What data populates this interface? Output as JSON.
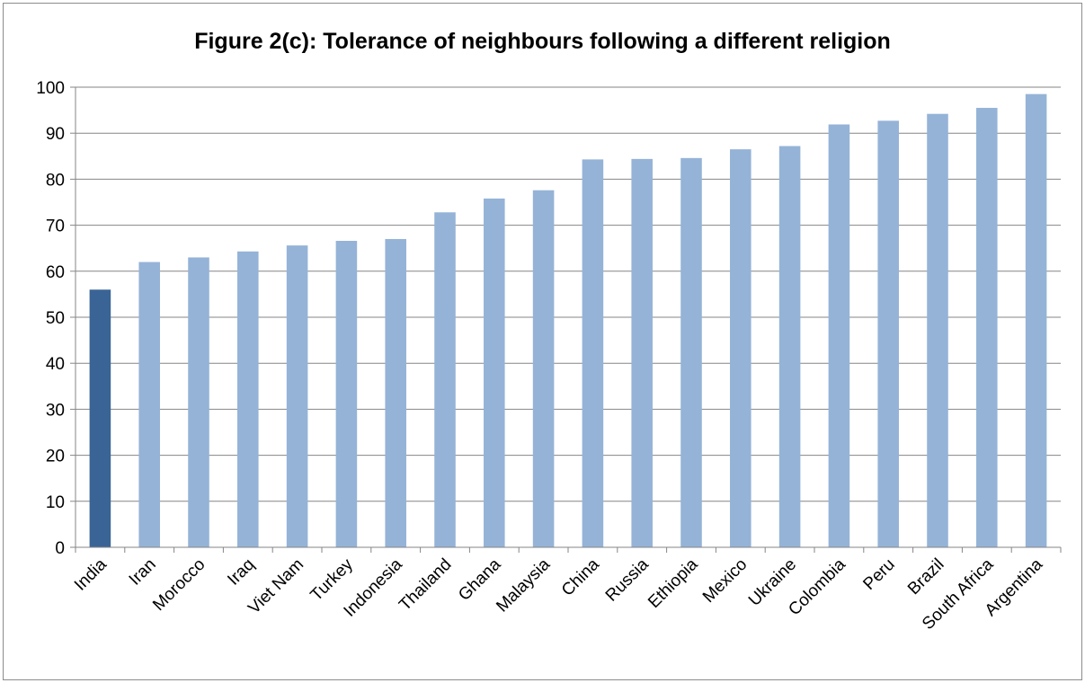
{
  "chart_data": {
    "type": "bar",
    "title": "Figure 2(c): Tolerance of neighbours following a different religion",
    "xlabel": "",
    "ylabel": "",
    "ylim": [
      0,
      100
    ],
    "yticks": [
      "0",
      "10",
      "20",
      "30",
      "40",
      "50",
      "60",
      "70",
      "80",
      "90",
      "100"
    ],
    "grid": true,
    "legend": "none",
    "categories": [
      "India",
      "Iran",
      "Morocco",
      "Iraq",
      "Viet Nam",
      "Turkey",
      "Indonesia",
      "Thailand",
      "Ghana",
      "Malaysia",
      "China",
      "Russia",
      "Ethiopia",
      "Mexico",
      "Ukraine",
      "Colombia",
      "Peru",
      "Brazil",
      "South Africa",
      "Argentina"
    ],
    "values": [
      56,
      62,
      63,
      64.3,
      65.6,
      66.6,
      67,
      72.8,
      75.8,
      77.6,
      84.3,
      84.4,
      84.6,
      86.5,
      87.2,
      91.9,
      92.7,
      94.2,
      95.5,
      98.5
    ],
    "colors": {
      "highlight": "#3a6496",
      "bar": "#95b3d7",
      "grid": "#868686",
      "axis": "#868686"
    },
    "highlight_category": "India"
  }
}
